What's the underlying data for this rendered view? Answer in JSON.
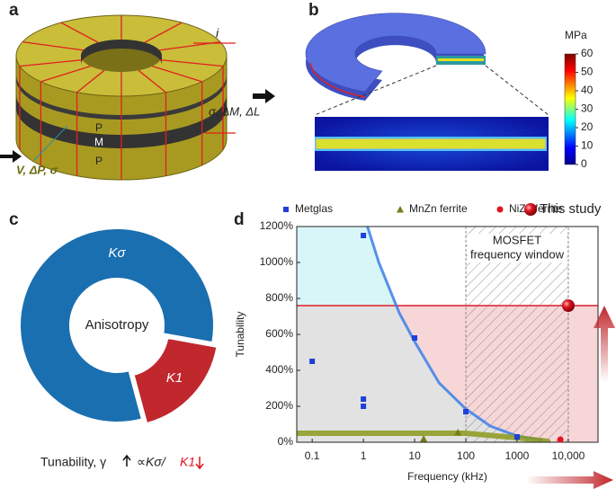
{
  "panel_labels": [
    "a",
    "b",
    "c",
    "d"
  ],
  "panel_a": {
    "layers": [
      "P",
      "M",
      "P"
    ],
    "current": "i",
    "output": "σ, ΔM, ΔL",
    "input": "V, ΔP, σ"
  },
  "panel_b": {
    "colorbar_unit": "MPa",
    "colorbar_lim": [
      0,
      60
    ],
    "colorbar_ticks": [
      0,
      10,
      20,
      30,
      40,
      50,
      60
    ]
  },
  "chart_data": [
    {
      "type": "donut",
      "categories": [
        "Kσ",
        "K1"
      ],
      "values": [
        82,
        18
      ],
      "colors": [
        "#1a6fb0",
        "#c0282e"
      ],
      "center_label": "Anisotropy",
      "caption": [
        "Tunability, γ",
        "∝Kσ/",
        "K1"
      ]
    },
    {
      "type": "scatter",
      "log_x": true,
      "x_label": "Frequency (kHz)",
      "y_label": "Tunability",
      "xlim": [
        0.05,
        38000
      ],
      "ylim": [
        0,
        1200
      ],
      "xticks": [
        0.1,
        1,
        10,
        100,
        1000,
        {
          "value": 10000,
          "label": "10,000"
        }
      ],
      "yticks": [
        {
          "value": 0,
          "label": "0%"
        },
        {
          "value": 200,
          "label": "200%"
        },
        {
          "value": 400,
          "label": "400%"
        },
        {
          "value": 600,
          "label": "600%"
        },
        {
          "value": 800,
          "label": "800%"
        },
        {
          "value": 1000,
          "label": "1000%"
        },
        {
          "value": 1200,
          "label": "1200%"
        }
      ],
      "window": [
        100,
        10000
      ],
      "window_label": [
        "MOSFET",
        "frequency window"
      ],
      "series": [
        {
          "name": "Metglas",
          "color": "#1f3fd8",
          "marker": "square",
          "x": [
            0.1,
            1,
            1,
            1,
            10,
            100,
            1000
          ],
          "values": [
            450,
            1150,
            240,
            200,
            580,
            170,
            30
          ]
        },
        {
          "name": "MnZn ferrite",
          "color": "#7a7a1a",
          "marker": "triangle",
          "x": [
            15,
            70
          ],
          "values": [
            20,
            55
          ]
        },
        {
          "name": "NiZn ferrite",
          "color": "#e0141e",
          "marker": "circle",
          "x": [
            7000
          ],
          "values": [
            15
          ]
        },
        {
          "name": "This study",
          "color": "#e0141e",
          "marker": "sphere",
          "x": [
            10000
          ],
          "values": [
            760
          ]
        }
      ],
      "lines": [
        {
          "color": "#3a7fe8",
          "x": [
            1.2,
            2,
            5,
            10,
            30,
            100,
            300,
            1000,
            3000
          ],
          "values": [
            1200,
            1000,
            720,
            560,
            330,
            185,
            90,
            35,
            12
          ]
        },
        {
          "color": "#8c9a1c",
          "x": [
            0.05,
            100,
            1000,
            4000
          ],
          "values": [
            50,
            50,
            25,
            5
          ]
        }
      ]
    }
  ]
}
